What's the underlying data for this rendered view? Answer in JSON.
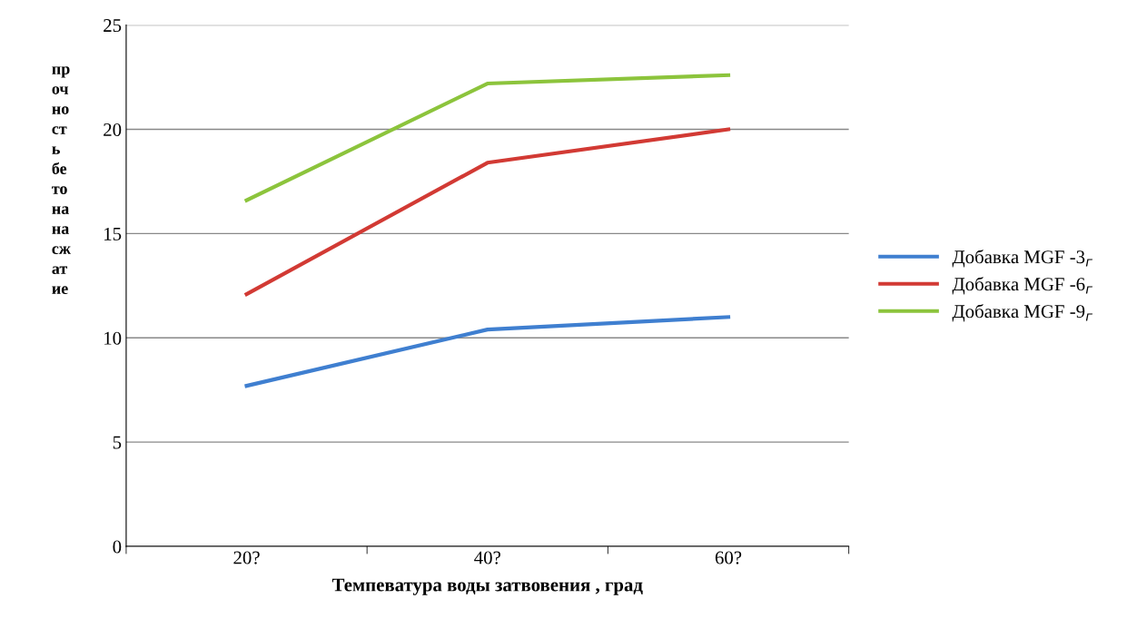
{
  "chart_data": {
    "type": "line",
    "xlabel": "Темпеватура воды затвовения , град",
    "ylabel": "прочность бетона на сжатие",
    "categories": [
      "20?",
      "40?",
      "60?"
    ],
    "series": [
      {
        "name": "Добавка MGF -3$_{г}$",
        "color": "#3f7fd0",
        "values": [
          7.7,
          10.4,
          11.0
        ]
      },
      {
        "name": "Добавка MGF -6$_{г}$",
        "color": "#d23a34",
        "values": [
          12.1,
          18.4,
          20.0
        ]
      },
      {
        "name": "Добавка MGF -9$_{г}$",
        "color": "#8cc43c",
        "values": [
          16.6,
          22.2,
          22.6
        ]
      }
    ],
    "ylim": [
      0,
      25
    ],
    "yticks": [
      0,
      5,
      10,
      15,
      20,
      25
    ],
    "grid": "y",
    "legend": "right",
    "marker": "none",
    "line_style": "solid"
  }
}
